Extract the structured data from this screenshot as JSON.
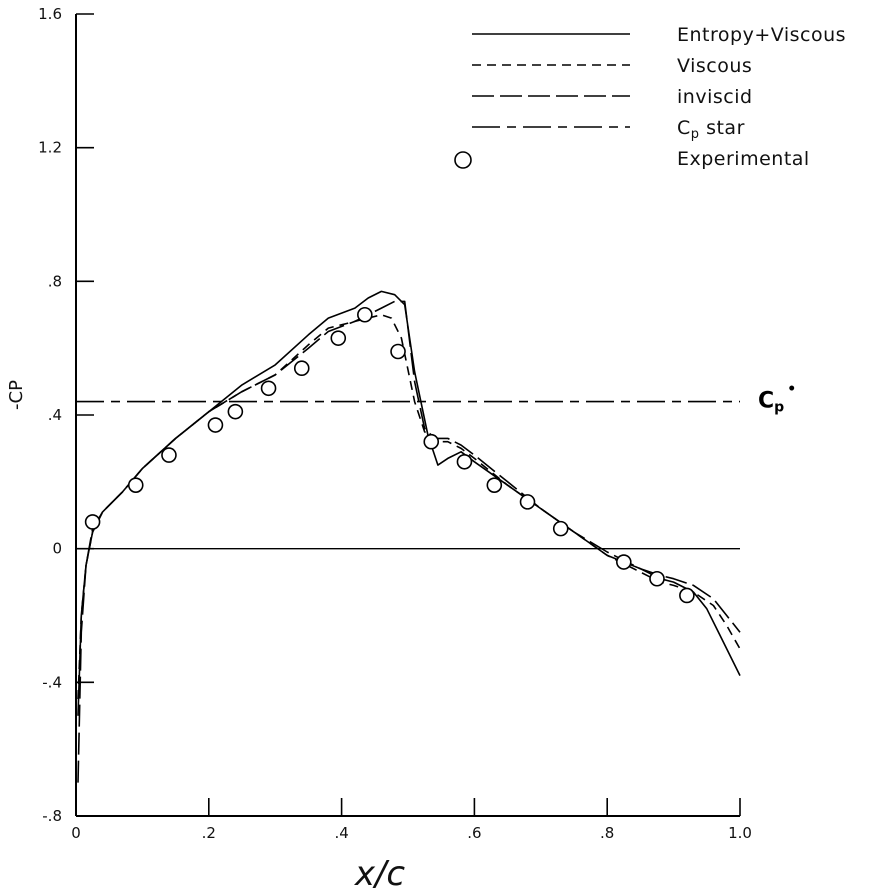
{
  "chart_data": {
    "type": "line",
    "xlabel": "x/c",
    "ylabel": "-CP",
    "xlim": [
      0,
      1.0
    ],
    "ylim": [
      -0.8,
      1.6
    ],
    "x_ticks": [
      {
        "value": 0,
        "label": "0"
      },
      {
        "value": 0.2,
        "label": ".2"
      },
      {
        "value": 0.4,
        "label": ".4"
      },
      {
        "value": 0.6,
        "label": ".6"
      },
      {
        "value": 0.8,
        "label": ".8"
      },
      {
        "value": 1.0,
        "label": "1.0"
      }
    ],
    "y_ticks": [
      {
        "value": -0.8,
        "label": "-.8"
      },
      {
        "value": -0.4,
        "label": "-.4"
      },
      {
        "value": 0,
        "label": "0"
      },
      {
        "value": 0.4,
        "label": ".4"
      },
      {
        "value": 0.8,
        "label": ".8"
      },
      {
        "value": 1.2,
        "label": "1.2"
      },
      {
        "value": 1.6,
        "label": "1.6"
      }
    ],
    "reference_line": {
      "label": "Cp*",
      "label_main": "C",
      "label_sub": "p",
      "label_sup": "•",
      "y": 0.44
    },
    "series": [
      {
        "name": "Entropy+Viscous",
        "style": "solid",
        "color": "#000000",
        "x": [
          0.003,
          0.008,
          0.015,
          0.025,
          0.04,
          0.07,
          0.1,
          0.15,
          0.2,
          0.25,
          0.3,
          0.35,
          0.38,
          0.42,
          0.44,
          0.46,
          0.48,
          0.495,
          0.51,
          0.53,
          0.545,
          0.56,
          0.58,
          0.6,
          0.65,
          0.7,
          0.75,
          0.8,
          0.85,
          0.88,
          0.9,
          0.93,
          0.95,
          0.97,
          1.0
        ],
        "y": [
          -0.5,
          -0.2,
          -0.05,
          0.05,
          0.11,
          0.17,
          0.24,
          0.33,
          0.41,
          0.49,
          0.55,
          0.64,
          0.69,
          0.72,
          0.75,
          0.77,
          0.76,
          0.73,
          0.53,
          0.34,
          0.25,
          0.27,
          0.29,
          0.26,
          0.19,
          0.12,
          0.05,
          -0.02,
          -0.06,
          -0.09,
          -0.1,
          -0.13,
          -0.18,
          -0.26,
          -0.38
        ]
      },
      {
        "name": "Viscous",
        "style": "dashed",
        "color": "#000000",
        "x": [
          0.003,
          0.008,
          0.015,
          0.025,
          0.04,
          0.07,
          0.1,
          0.15,
          0.2,
          0.25,
          0.3,
          0.35,
          0.38,
          0.42,
          0.44,
          0.46,
          0.475,
          0.49,
          0.51,
          0.525,
          0.54,
          0.56,
          0.58,
          0.6,
          0.65,
          0.7,
          0.75,
          0.8,
          0.85,
          0.88,
          0.9,
          0.93,
          0.96,
          0.98,
          1.0
        ],
        "y": [
          -0.45,
          -0.2,
          -0.05,
          0.05,
          0.11,
          0.17,
          0.24,
          0.33,
          0.41,
          0.47,
          0.52,
          0.61,
          0.66,
          0.68,
          0.69,
          0.7,
          0.69,
          0.63,
          0.44,
          0.35,
          0.32,
          0.32,
          0.3,
          0.27,
          0.19,
          0.12,
          0.05,
          -0.02,
          -0.07,
          -0.1,
          -0.11,
          -0.13,
          -0.17,
          -0.23,
          -0.3
        ]
      },
      {
        "name": "inviscid",
        "style": "longdash",
        "color": "#000000",
        "x": [
          0.003,
          0.008,
          0.015,
          0.025,
          0.04,
          0.07,
          0.1,
          0.15,
          0.2,
          0.25,
          0.3,
          0.35,
          0.38,
          0.42,
          0.44,
          0.46,
          0.48,
          0.495,
          0.51,
          0.525,
          0.54,
          0.56,
          0.58,
          0.6,
          0.65,
          0.7,
          0.75,
          0.8,
          0.85,
          0.88,
          0.9,
          0.93,
          0.96,
          0.98,
          1.0
        ],
        "y": [
          -0.7,
          -0.25,
          -0.05,
          0.06,
          0.11,
          0.17,
          0.24,
          0.33,
          0.41,
          0.47,
          0.52,
          0.6,
          0.65,
          0.68,
          0.7,
          0.72,
          0.74,
          0.74,
          0.5,
          0.36,
          0.33,
          0.33,
          0.31,
          0.28,
          0.2,
          0.12,
          0.05,
          -0.01,
          -0.06,
          -0.08,
          -0.09,
          -0.11,
          -0.15,
          -0.2,
          -0.25
        ]
      },
      {
        "name": "Cp star",
        "style": "dashdot",
        "color": "#000000",
        "x": [
          0,
          1.0
        ],
        "y": [
          0.44,
          0.44
        ]
      }
    ],
    "experimental": {
      "name": "Experimental",
      "x": [
        0.025,
        0.09,
        0.14,
        0.21,
        0.24,
        0.29,
        0.34,
        0.395,
        0.435,
        0.485,
        0.535,
        0.585,
        0.63,
        0.68,
        0.73,
        0.825,
        0.875,
        0.92
      ],
      "y": [
        0.08,
        0.19,
        0.28,
        0.37,
        0.41,
        0.48,
        0.54,
        0.63,
        0.7,
        0.59,
        0.32,
        0.26,
        0.19,
        0.14,
        0.06,
        -0.04,
        -0.09,
        -0.14
      ]
    },
    "legend": [
      {
        "label": "Entropy+Viscous",
        "style": "solid"
      },
      {
        "label": "Viscous",
        "style": "dashed"
      },
      {
        "label": "inviscid",
        "style": "longdash"
      },
      {
        "label": "Cp star",
        "label_main": "C",
        "label_sub": "p",
        "label_tail": " star",
        "style": "dashdot"
      },
      {
        "label": "Experimental",
        "style": "circle"
      }
    ],
    "legend_position": "top-right",
    "grid": false
  }
}
